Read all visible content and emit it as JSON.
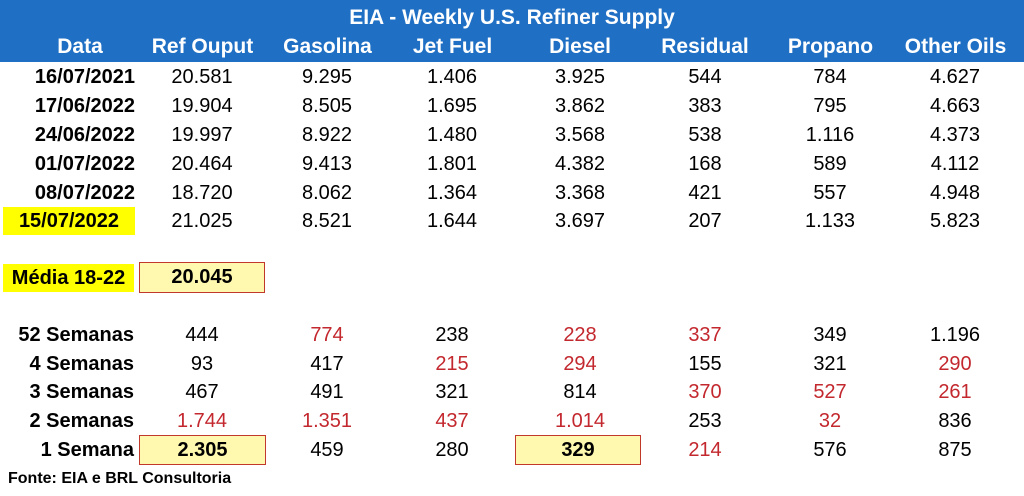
{
  "title": "EIA - Weekly U.S. Refiner Supply",
  "columns": [
    "Data",
    "Ref Ouput",
    "Gasolina",
    "Jet Fuel",
    "Diesel",
    "Residual",
    "Propano",
    "Other Oils"
  ],
  "weekly_rows": [
    {
      "date": "16/07/2021",
      "values": [
        "20.581",
        "9.295",
        "1.406",
        "3.925",
        "544",
        "784",
        "4.627"
      ]
    },
    {
      "date": "17/06/2022",
      "values": [
        "19.904",
        "8.505",
        "1.695",
        "3.862",
        "383",
        "795",
        "4.663"
      ]
    },
    {
      "date": "24/06/2022",
      "values": [
        "19.997",
        "8.922",
        "1.480",
        "3.568",
        "538",
        "1.116",
        "4.373"
      ]
    },
    {
      "date": "01/07/2022",
      "values": [
        "20.464",
        "9.413",
        "1.801",
        "4.382",
        "168",
        "589",
        "4.112"
      ]
    },
    {
      "date": "08/07/2022",
      "values": [
        "18.720",
        "8.062",
        "1.364",
        "3.368",
        "421",
        "557",
        "4.948"
      ]
    },
    {
      "date": "15/07/2022",
      "values": [
        "21.025",
        "8.521",
        "1.644",
        "3.697",
        "207",
        "1.133",
        "5.823"
      ]
    }
  ],
  "media": {
    "label": "Média 18-22",
    "value": "20.045"
  },
  "change_rows": [
    {
      "label": "52 Semanas",
      "values": [
        "444",
        "774",
        "238",
        "228",
        "337",
        "349",
        "1.196"
      ],
      "red": [
        false,
        true,
        false,
        true,
        true,
        false,
        false
      ]
    },
    {
      "label": "4 Semanas",
      "values": [
        "93",
        "417",
        "215",
        "294",
        "155",
        "321",
        "290"
      ],
      "red": [
        false,
        false,
        true,
        true,
        false,
        false,
        true
      ]
    },
    {
      "label": "3 Semanas",
      "values": [
        "467",
        "491",
        "321",
        "814",
        "370",
        "527",
        "261"
      ],
      "red": [
        false,
        false,
        false,
        false,
        true,
        true,
        true
      ]
    },
    {
      "label": "2 Semanas",
      "values": [
        "1.744",
        "1.351",
        "437",
        "1.014",
        "253",
        "32",
        "836"
      ],
      "red": [
        true,
        true,
        true,
        true,
        false,
        true,
        false
      ]
    },
    {
      "label": "1 Semana",
      "values": [
        "2.305",
        "459",
        "280",
        "329",
        "214",
        "576",
        "875"
      ],
      "red": [
        false,
        false,
        false,
        false,
        true,
        false,
        false
      ]
    }
  ],
  "source": "Fonte: EIA e BRL Consultoria",
  "colors": {
    "header": "#1f6fc4",
    "negative": "#c3282e",
    "highlight": "#ffff00",
    "box_fill": "#fff9b0",
    "box_border": "#c0392b"
  }
}
